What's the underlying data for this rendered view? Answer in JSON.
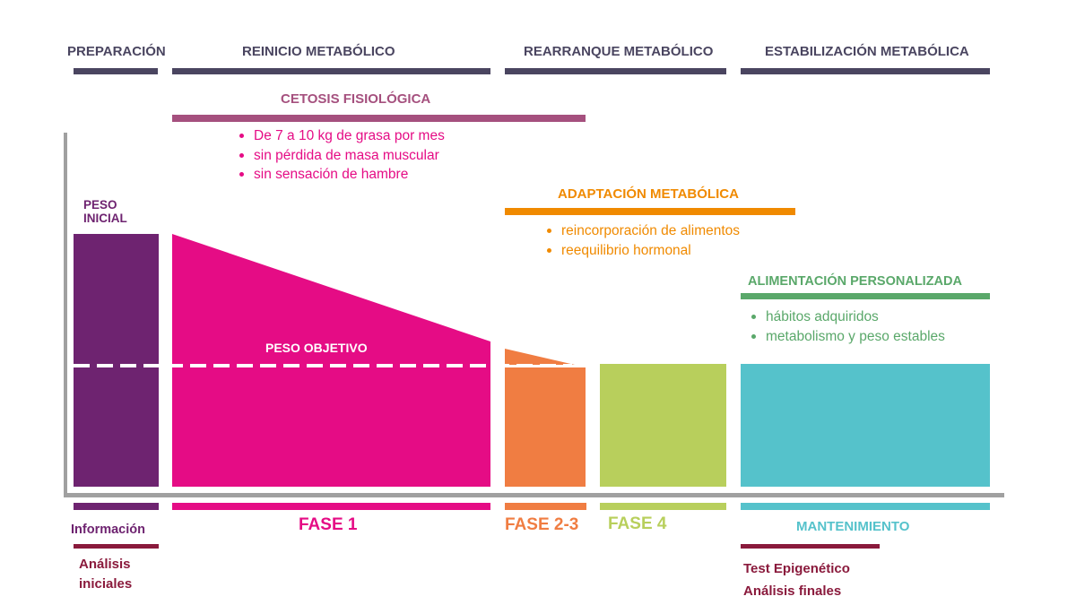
{
  "headers": {
    "preparacion": "PREPARACIÓN",
    "reinicio": "REINICIO METABÓLICO",
    "rearranque": "REARRANQUE METABÓLICO",
    "estabilizacion": "ESTABILIZACIÓN METABÓLICA"
  },
  "cetosis": {
    "title": "CETOSIS FISIOLÓGICA",
    "bullets": [
      "De 7 a 10 kg de grasa por mes",
      "sin pérdida de masa muscular",
      "sin sensación de hambre"
    ]
  },
  "adaptacion": {
    "title": "ADAPTACIÓN METABÓLICA",
    "bullets": [
      "reincorporación de alimentos",
      "reequilibrio hormonal"
    ]
  },
  "alimentacion": {
    "title": "ALIMENTACIÓN PERSONALIZADA",
    "bullets": [
      "hábitos adquiridos",
      "metabolismo y peso estables"
    ]
  },
  "labels": {
    "peso_inicial_1": "PESO",
    "peso_inicial_2": "INICIAL",
    "peso_objetivo": "PESO OBJETIVO"
  },
  "phases": {
    "informacion": "Información",
    "fase1": "FASE 1",
    "fase23": "FASE 2-3",
    "fase4": "FASE 4",
    "mantenimiento": "MANTENIMIENTO"
  },
  "notes": {
    "analisis_1": "Análisis",
    "analisis_2": "iniciales",
    "test": "Test Epigenético",
    "finales": "Análisis finales"
  },
  "colors": {
    "header_bar": "#4a4560",
    "purple": "#6e2370",
    "magenta": "#e50c85",
    "mauve": "#a5507e",
    "orange": "#f07d42",
    "orange_text": "#f08a00",
    "lime": "#b8cf5c",
    "cyan": "#55c2cb",
    "green": "#5aa86a",
    "maroon": "#8a1a3c",
    "axis": "#a0a0a0"
  }
}
